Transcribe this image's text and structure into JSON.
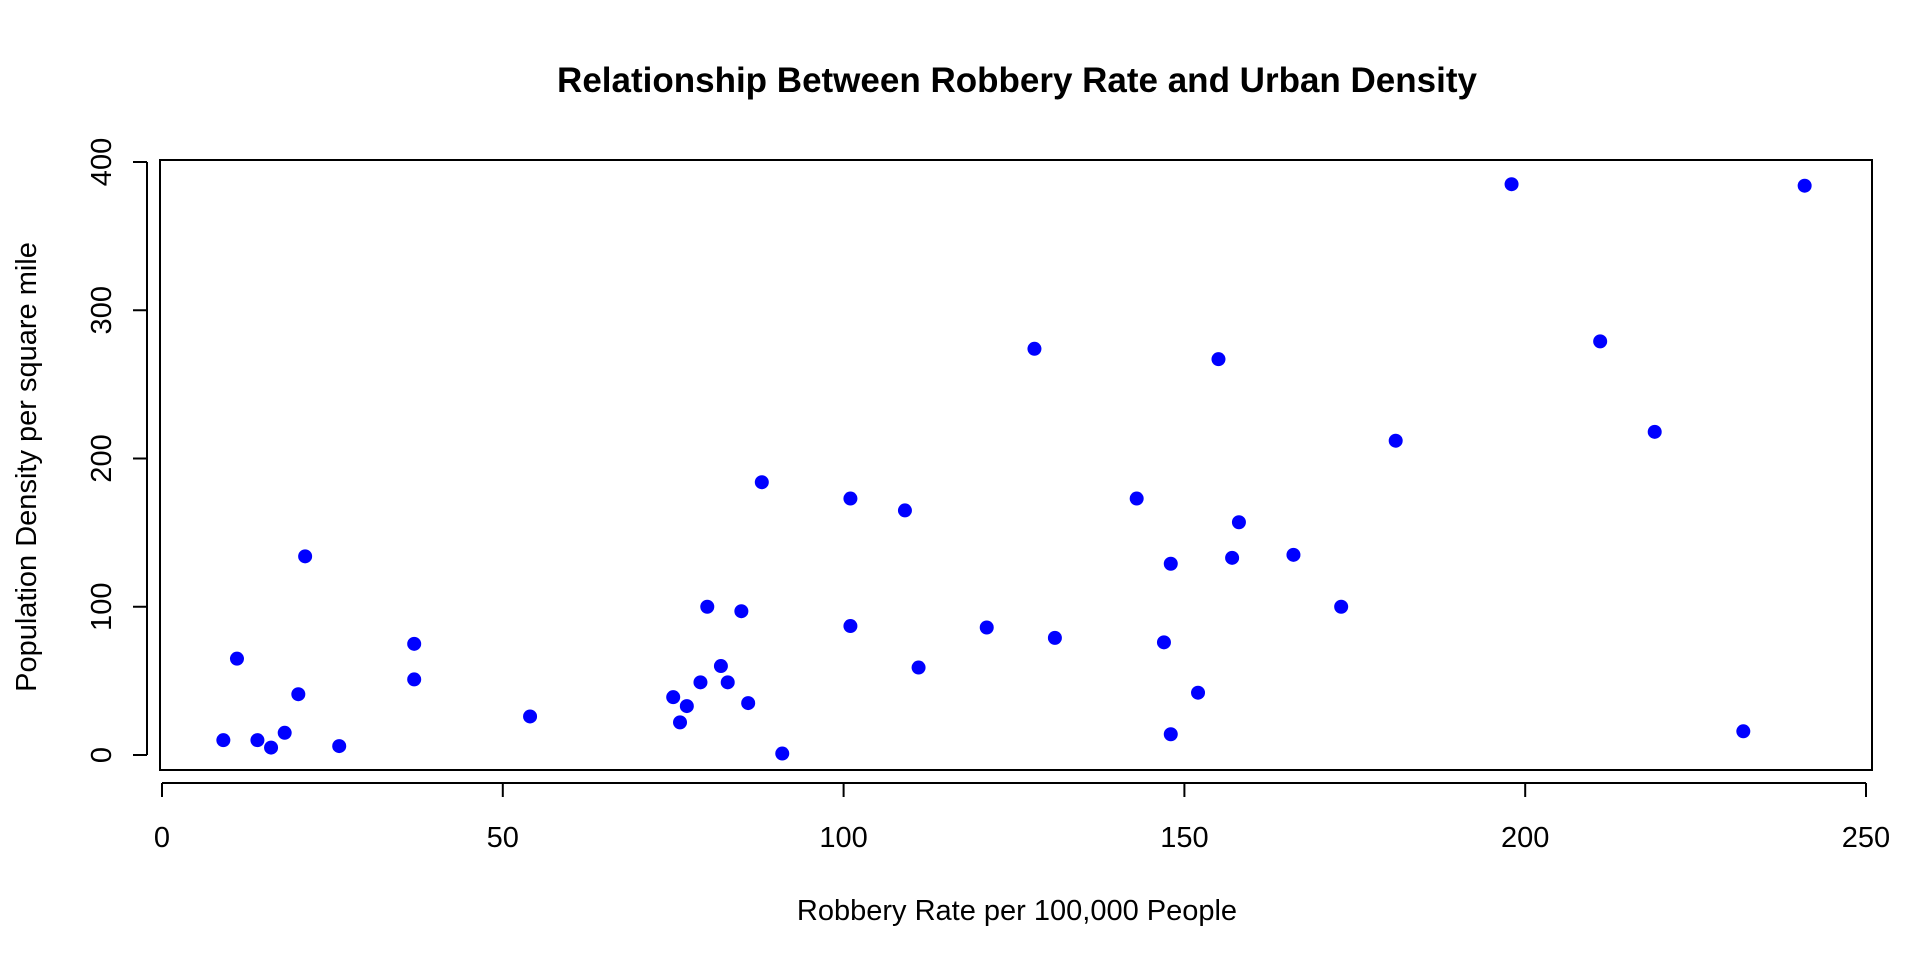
{
  "chart_data": {
    "type": "scatter",
    "title": "Relationship Between Robbery Rate and Urban Density",
    "xlabel": "Robbery Rate per 100,000 People",
    "ylabel": "Population Density per square mile",
    "xlim": [
      0,
      250
    ],
    "ylim": [
      0,
      400
    ],
    "xticks": [
      "0",
      "50",
      "100",
      "150",
      "200",
      "250"
    ],
    "yticks": [
      "0",
      "100",
      "200",
      "300",
      "400"
    ],
    "grid": false,
    "legend": "none",
    "marker_color": "#0000ff",
    "points": [
      [
        9,
        10
      ],
      [
        11,
        65
      ],
      [
        14,
        10
      ],
      [
        16,
        5
      ],
      [
        18,
        15
      ],
      [
        20,
        41
      ],
      [
        21,
        134
      ],
      [
        26,
        6
      ],
      [
        37,
        75
      ],
      [
        37,
        51
      ],
      [
        54,
        26
      ],
      [
        75,
        39
      ],
      [
        76,
        22
      ],
      [
        77,
        33
      ],
      [
        79,
        49
      ],
      [
        80,
        100
      ],
      [
        82,
        60
      ],
      [
        83,
        49
      ],
      [
        85,
        97
      ],
      [
        86,
        35
      ],
      [
        88,
        184
      ],
      [
        91,
        1
      ],
      [
        101,
        87
      ],
      [
        101,
        173
      ],
      [
        109,
        165
      ],
      [
        111,
        59
      ],
      [
        121,
        86
      ],
      [
        128,
        274
      ],
      [
        131,
        79
      ],
      [
        143,
        173
      ],
      [
        147,
        76
      ],
      [
        148,
        129
      ],
      [
        148,
        14
      ],
      [
        152,
        42
      ],
      [
        155,
        267
      ],
      [
        157,
        133
      ],
      [
        158,
        157
      ],
      [
        166,
        135
      ],
      [
        173,
        100
      ],
      [
        181,
        212
      ],
      [
        198,
        385
      ],
      [
        211,
        279
      ],
      [
        219,
        218
      ],
      [
        232,
        16
      ],
      [
        241,
        384
      ]
    ]
  }
}
